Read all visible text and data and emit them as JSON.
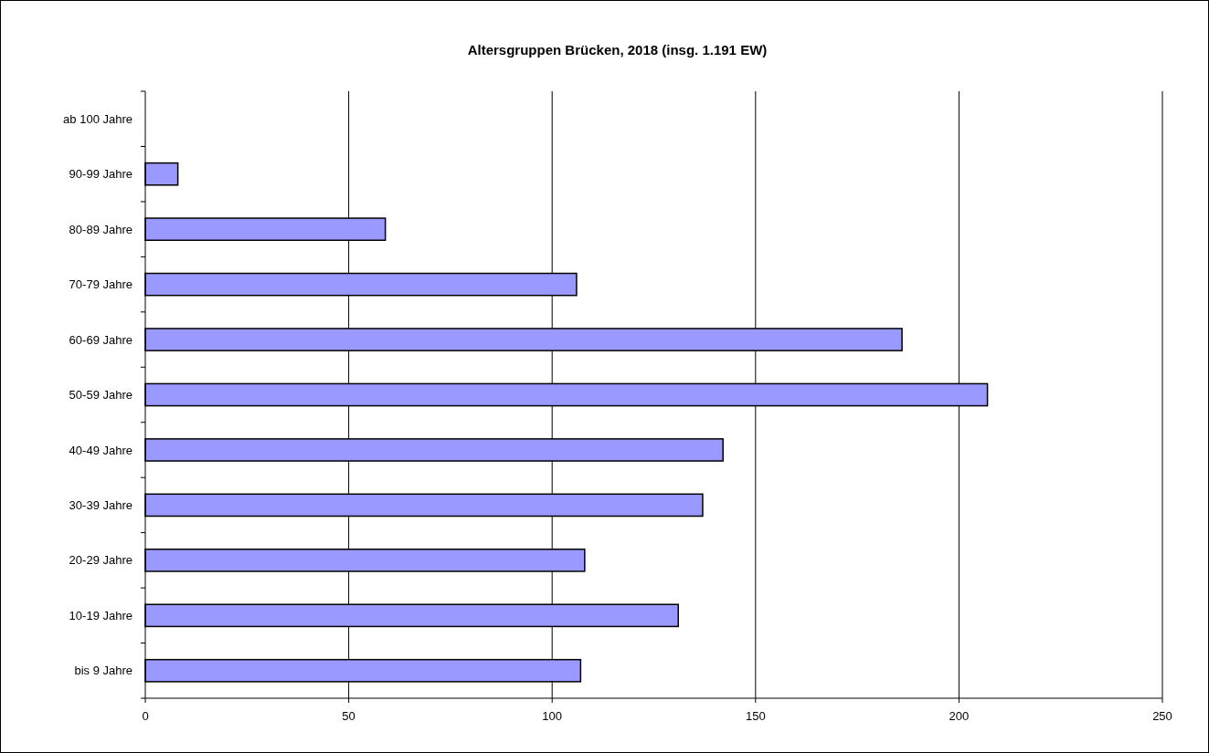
{
  "chart_data": {
    "type": "bar",
    "orientation": "horizontal",
    "title": "Altersgruppen Brücken, 2018 (insg. 1.191 EW)",
    "categories": [
      "ab 100 Jahre",
      "90-99 Jahre",
      "80-89 Jahre",
      "70-79 Jahre",
      "60-69 Jahre",
      "50-59 Jahre",
      "40-49 Jahre",
      "30-39 Jahre",
      "20-29 Jahre",
      "10-19 Jahre",
      "bis 9 Jahre"
    ],
    "values": [
      0,
      8,
      59,
      106,
      186,
      207,
      142,
      137,
      108,
      131,
      107
    ],
    "color": "#9999ff",
    "xlim": [
      0,
      250
    ],
    "xticks": [
      0,
      50,
      100,
      150,
      200,
      250
    ],
    "grid": "x"
  }
}
